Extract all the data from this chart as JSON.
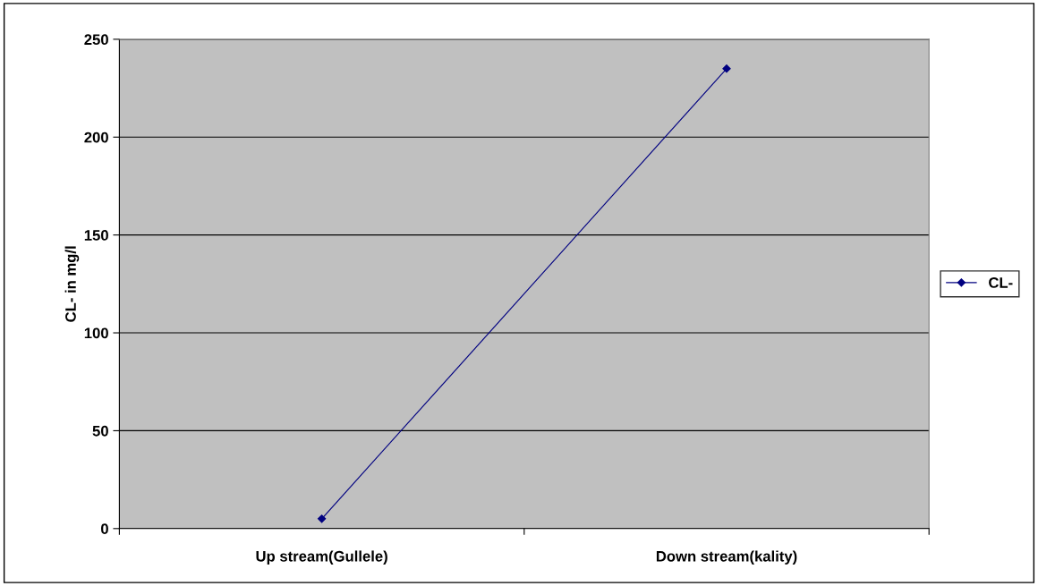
{
  "chart_data": {
    "type": "line",
    "ylabel": "CL- in mg/l",
    "categories": [
      "Up stream(Gullele)",
      "Down stream(kality)"
    ],
    "series": [
      {
        "name": "CL-",
        "color": "#000080",
        "values": [
          5,
          235
        ]
      }
    ],
    "ylim": [
      0,
      250
    ],
    "yticks": [
      0,
      50,
      100,
      150,
      200,
      250
    ],
    "grid": "y",
    "legend": "right",
    "marker": "diamond",
    "line_style": "solid"
  }
}
